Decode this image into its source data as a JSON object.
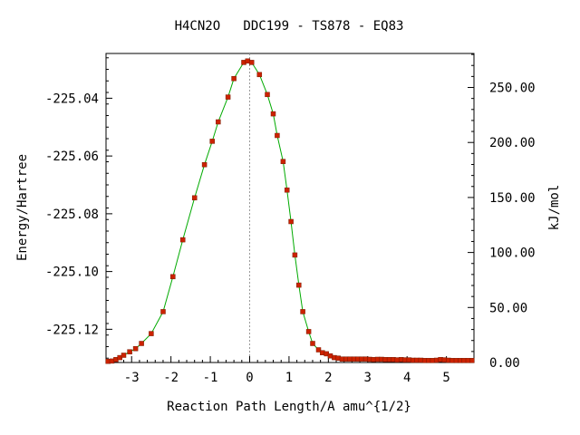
{
  "chart_data": {
    "type": "line",
    "title": "H4CN2O   DDC199 - TS878 - EQ83",
    "xlabel": "Reaction Path Length/A amu^{1/2}",
    "ylabel": "Energy/Hartree",
    "y2label": "kJ/mol",
    "xlim": [
      -3.65,
      5.7
    ],
    "ylim": [
      -225.1315,
      -225.0245
    ],
    "y2lim": [
      0.0,
      280.9
    ],
    "x_ticks": [
      -3,
      -2,
      -1,
      0,
      1,
      2,
      3,
      4,
      5
    ],
    "x_tick_labels": [
      "-3",
      "-2",
      "-1",
      "0",
      "1",
      "2",
      "3",
      "4",
      "5"
    ],
    "y_ticks": [
      -225.04,
      -225.06,
      -225.08,
      -225.1,
      -225.12
    ],
    "y_tick_labels": [
      "-225.04",
      "-225.06",
      "-225.08",
      "-225.10",
      "-225.12"
    ],
    "y2_ticks": [
      0,
      50,
      100,
      150,
      200,
      250
    ],
    "y2_tick_labels": [
      "0.00",
      "50.00",
      "100.00",
      "150.00",
      "200.00",
      "250.00"
    ],
    "ts_marker_x": 0,
    "colors": {
      "curve": "#00aa00",
      "points": "#cc2200",
      "axes": "#000000",
      "ts_line": "#999999"
    },
    "series": [
      {
        "x": [
          -3.6,
          -3.5,
          -3.4,
          -3.3,
          -3.2,
          -3.05,
          -2.9,
          -2.75,
          -2.5,
          -2.2,
          -1.95,
          -1.7,
          -1.4,
          -1.15,
          -0.95,
          -0.8,
          -0.55,
          -0.4,
          -0.15,
          -0.05,
          0.05,
          0.25,
          0.45,
          0.6,
          0.7,
          0.85,
          0.95,
          1.05,
          1.15,
          1.25,
          1.35,
          1.5,
          1.6,
          1.75,
          1.85,
          1.95,
          2.05,
          2.15,
          2.25,
          2.35,
          2.45,
          2.55,
          2.65,
          2.75,
          2.85,
          2.95,
          3.05,
          3.15,
          3.25,
          3.35,
          3.45,
          3.55,
          3.65,
          3.75,
          3.85,
          3.95,
          4.05,
          4.15,
          4.25,
          4.35,
          4.45,
          4.55,
          4.65,
          4.75,
          4.85,
          4.95,
          5.05,
          5.15,
          5.25,
          5.35,
          5.45,
          5.55,
          5.65
        ],
        "y": [
          -225.1311,
          -225.131,
          -225.1305,
          -225.1298,
          -225.129,
          -225.1278,
          -225.1267,
          -225.1249,
          -225.1215,
          -225.1139,
          -225.1018,
          -225.089,
          -225.0745,
          -225.063,
          -225.0549,
          -225.0482,
          -225.0396,
          -225.0332,
          -225.0276,
          -225.0271,
          -225.0276,
          -225.0318,
          -225.0387,
          -225.0454,
          -225.0529,
          -225.0619,
          -225.0718,
          -225.0827,
          -225.0943,
          -225.1047,
          -225.1139,
          -225.1208,
          -225.1249,
          -225.1271,
          -225.1281,
          -225.1285,
          -225.1292,
          -225.1298,
          -225.13,
          -225.1303,
          -225.1303,
          -225.1303,
          -225.1303,
          -225.1303,
          -225.1303,
          -225.1303,
          -225.1304,
          -225.1305,
          -225.1304,
          -225.1304,
          -225.1305,
          -225.1305,
          -225.1305,
          -225.1306,
          -225.1305,
          -225.1306,
          -225.1306,
          -225.1307,
          -225.1307,
          -225.1307,
          -225.1308,
          -225.1308,
          -225.1308,
          -225.1307,
          -225.1305,
          -225.1306,
          -225.1307,
          -225.1308,
          -225.1308,
          -225.1308,
          -225.1308,
          -225.1308,
          -225.1308
        ]
      }
    ]
  }
}
